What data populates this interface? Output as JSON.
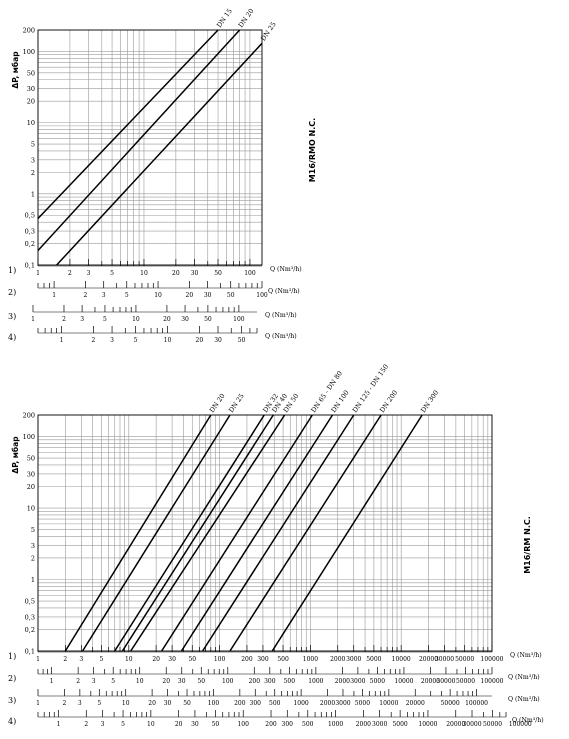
{
  "chart_data": [
    {
      "type": "line",
      "chart_label": "M16/RMO N.C.",
      "ylabel": "ΔP, мбар",
      "x_scale": "log",
      "y_scale": "log",
      "xlim": [
        1,
        130
      ],
      "ylim": [
        0.1,
        200
      ],
      "y_ticks": [
        0.1,
        0.2,
        0.3,
        0.5,
        1,
        2,
        3,
        5,
        10,
        20,
        30,
        50,
        100,
        200
      ],
      "y_tick_labels": [
        "0,1",
        "0,2",
        "0,3",
        "0,5",
        "1",
        "2",
        "3",
        "5",
        "10",
        "20",
        "30",
        "50",
        "100",
        "200"
      ],
      "axis_rows": [
        {
          "label": "1)",
          "unit": "Q (Nm³/h)",
          "min": 1,
          "max": 130,
          "labels": [
            1,
            2,
            3,
            5,
            10,
            20,
            30,
            50,
            100
          ]
        },
        {
          "label": "2)",
          "unit": "Q (Nm³/h)",
          "min": 0.7,
          "max": 100,
          "labels": [
            1,
            2,
            3,
            5,
            10,
            20,
            30,
            50,
            100
          ]
        },
        {
          "label": "3)",
          "unit": "Q (Nm³/h)",
          "min": 1,
          "max": 150,
          "labels": [
            1,
            2,
            3,
            5,
            10,
            20,
            30,
            50,
            100
          ]
        },
        {
          "label": "4)",
          "unit": "Q (Nm³/h)",
          "min": 0.6,
          "max": 70,
          "labels": [
            1,
            2,
            3,
            5,
            10,
            20,
            30,
            50
          ]
        }
      ],
      "series": [
        {
          "name": "DN 15",
          "points": [
            [
              1,
              0.45
            ],
            [
              50,
              200
            ]
          ]
        },
        {
          "name": "DN 20",
          "points": [
            [
              1,
              0.16
            ],
            [
              80,
              200
            ]
          ]
        },
        {
          "name": "DN 25",
          "points": [
            [
              1.5,
              0.1
            ],
            [
              130,
              130
            ]
          ]
        }
      ]
    },
    {
      "type": "line",
      "chart_label": "M16/RM N.C.",
      "ylabel": "ΔP, мбар",
      "x_scale": "log",
      "y_scale": "log",
      "xlim": [
        1,
        100000
      ],
      "ylim": [
        0.1,
        200
      ],
      "y_ticks": [
        0.1,
        0.2,
        0.3,
        0.5,
        1,
        2,
        3,
        5,
        10,
        20,
        30,
        50,
        100,
        200
      ],
      "y_tick_labels": [
        "0,1",
        "0,2",
        "0,3",
        "0,5",
        "1",
        "2",
        "3",
        "5",
        "10",
        "20",
        "30",
        "50",
        "100",
        "200"
      ],
      "axis_rows": [
        {
          "label": "1)",
          "unit": "Q (Nm³/h)",
          "min": 1,
          "max": 100000,
          "labels": [
            1,
            2,
            3,
            5,
            10,
            20,
            30,
            50,
            100,
            200,
            300,
            500,
            1000,
            2000,
            3000,
            5000,
            10000,
            20000,
            30000,
            50000,
            100000
          ]
        },
        {
          "label": "2)",
          "unit": "Q (Nm³/h)",
          "min": 0.7,
          "max": 100000,
          "labels": [
            1,
            2,
            3,
            5,
            10,
            20,
            30,
            50,
            100,
            200,
            300,
            500,
            1000,
            2000,
            3000,
            5000,
            10000,
            20000,
            30000,
            50000,
            100000
          ]
        },
        {
          "label": "3)",
          "unit": "Q (Nm³/h)",
          "min": 1,
          "max": 150000,
          "labels": [
            1,
            2,
            3,
            5,
            10,
            20,
            30,
            50,
            100,
            200,
            300,
            500,
            1000,
            2000,
            3000,
            5000,
            10000,
            20000,
            50000,
            100000
          ]
        },
        {
          "label": "4)",
          "unit": "Q (Nm³/h)",
          "min": 0.6,
          "max": 70000,
          "labels": [
            1,
            2,
            3,
            5,
            10,
            20,
            30,
            50,
            100,
            200,
            300,
            500,
            1000,
            2000,
            3000,
            5000,
            10000,
            20000,
            30000,
            50000,
            100000
          ]
        }
      ],
      "series": [
        {
          "name": "DN 20",
          "points": [
            [
              2,
              0.1
            ],
            [
              80,
              200
            ]
          ]
        },
        {
          "name": "DN 25",
          "points": [
            [
              3.1,
              0.1
            ],
            [
              130,
              200
            ]
          ]
        },
        {
          "name": "DN 32",
          "points": [
            [
              7,
              0.1
            ],
            [
              310,
              200
            ]
          ]
        },
        {
          "name": "DN 40",
          "points": [
            [
              8.5,
              0.1
            ],
            [
              390,
              200
            ]
          ]
        },
        {
          "name": "DN 50",
          "points": [
            [
              10.5,
              0.1
            ],
            [
              520,
              200
            ]
          ]
        },
        {
          "name": "DN 65 - DN 80",
          "points": [
            [
              23,
              0.1
            ],
            [
              1050,
              200
            ]
          ]
        },
        {
          "name": "DN 100",
          "points": [
            [
              38,
              0.1
            ],
            [
              1750,
              200
            ]
          ]
        },
        {
          "name": "DN 125 - DN 150",
          "points": [
            [
              65,
              0.1
            ],
            [
              3000,
              200
            ]
          ]
        },
        {
          "name": "DN 200",
          "points": [
            [
              130,
              0.1
            ],
            [
              6000,
              200
            ]
          ]
        },
        {
          "name": "DN 300",
          "points": [
            [
              380,
              0.1
            ],
            [
              17000,
              200
            ]
          ]
        }
      ]
    }
  ]
}
